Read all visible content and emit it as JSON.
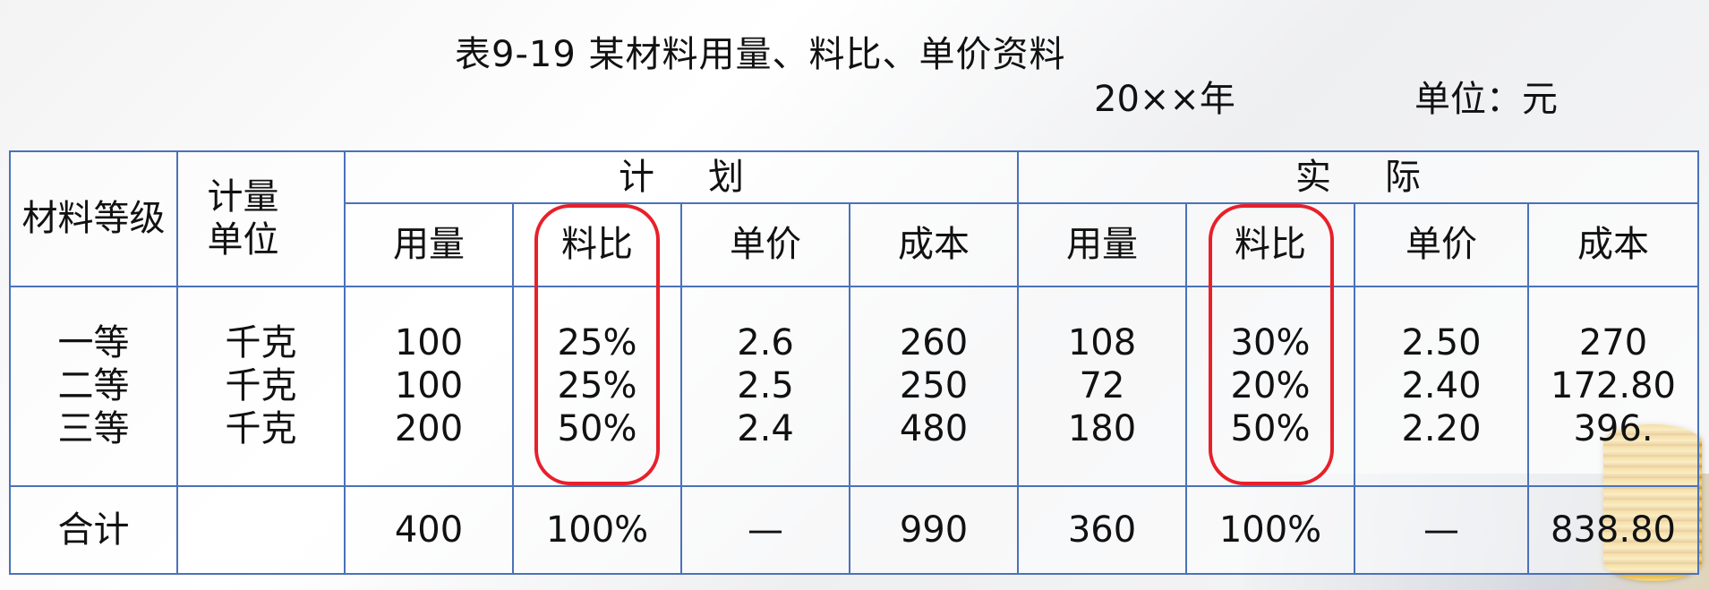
{
  "title": "表9-19  某材料用量、料比、单价资料",
  "meta": {
    "year": "20××年",
    "unit": "单位：元"
  },
  "headers": {
    "grade": "材料等级",
    "unit": "计量单位",
    "plan": "计划",
    "actual": "实际",
    "sub": [
      "用量",
      "料比",
      "单价",
      "成本",
      "用量",
      "料比",
      "单价",
      "成本"
    ]
  },
  "rows": {
    "grade": [
      "一等",
      "二等",
      "三等"
    ],
    "unit": [
      "千克",
      "千克",
      "千克"
    ],
    "plan_qty": [
      "100",
      "100",
      "200"
    ],
    "plan_ratio": [
      "25%",
      "25%",
      "50%"
    ],
    "plan_price": [
      "2.6",
      "2.5",
      "2.4"
    ],
    "plan_cost": [
      "260",
      "250",
      "480"
    ],
    "act_qty": [
      "108",
      "72",
      "180"
    ],
    "act_ratio": [
      "30%",
      "20%",
      "50%"
    ],
    "act_price": [
      "2.50",
      "2.40",
      "2.20"
    ],
    "act_cost": [
      "270",
      "172.80",
      "396."
    ]
  },
  "total": {
    "label": "合计",
    "unit": "",
    "plan_qty": "400",
    "plan_ratio": "100%",
    "plan_price": "—",
    "plan_cost": "990",
    "act_qty": "360",
    "act_ratio": "100%",
    "act_price": "—",
    "act_cost": "838.80"
  },
  "colors": {
    "grid": "#4a72b8",
    "highlight": "#e8202a"
  }
}
